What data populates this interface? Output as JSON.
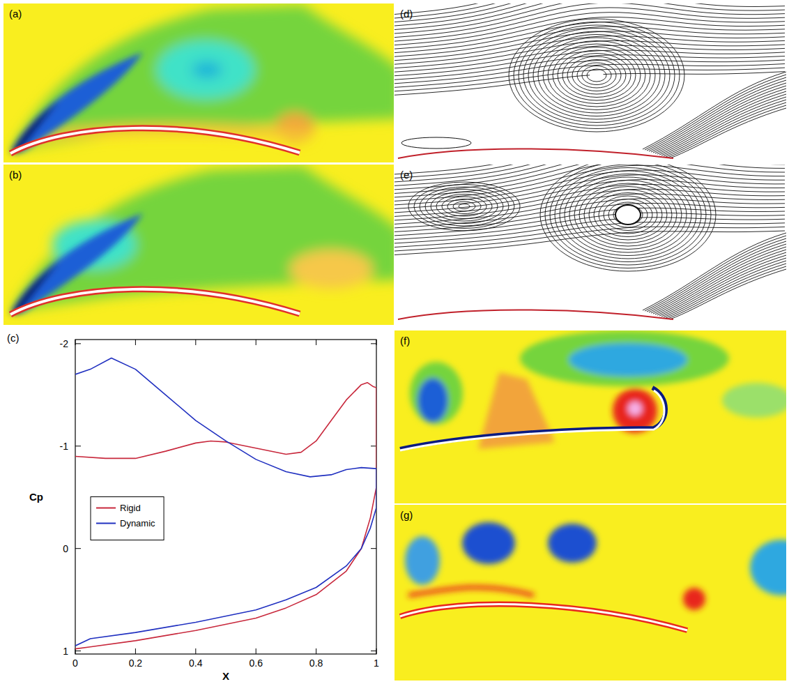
{
  "panels": [
    {
      "label": "(a)"
    },
    {
      "label": "(b)"
    },
    {
      "label": "(d)"
    },
    {
      "label": "(e)"
    },
    {
      "label": "(f)"
    },
    {
      "label": "(g)"
    }
  ],
  "chart_data": {
    "type": "line",
    "panel": "(c)",
    "x_label": "X",
    "y_label": "Cp",
    "xlim": [
      0,
      1
    ],
    "xticks": [
      0,
      0.2,
      0.4,
      0.6,
      0.8,
      1
    ],
    "ylim": [
      1.03,
      -2.04
    ],
    "yticks": [
      -2,
      -1,
      0,
      1
    ],
    "grid": false,
    "legend": "center left",
    "series": [
      {
        "name": "Rigid",
        "color": "#c8283c",
        "x": [
          0,
          0.1,
          0.2,
          0.3,
          0.4,
          0.45,
          0.5,
          0.6,
          0.7,
          0.75,
          0.8,
          0.85,
          0.9,
          0.95,
          0.97,
          0.99,
          1,
          1,
          0.99,
          0.98,
          0.95,
          0.9,
          0.8,
          0.7,
          0.6,
          0.4,
          0.2,
          0.05,
          0
        ],
        "values": [
          -0.9,
          -0.88,
          -0.88,
          -0.95,
          -1.03,
          -1.05,
          -1.04,
          -0.98,
          -0.92,
          -0.94,
          -1.05,
          -1.25,
          -1.45,
          -1.6,
          -1.62,
          -1.58,
          -1.57,
          -0.6,
          -0.45,
          -0.3,
          0,
          0.22,
          0.45,
          0.58,
          0.68,
          0.8,
          0.9,
          0.96,
          0.98
        ]
      },
      {
        "name": "Dynamic",
        "color": "#2030c0",
        "x": [
          0,
          0.05,
          0.12,
          0.2,
          0.3,
          0.4,
          0.5,
          0.6,
          0.7,
          0.78,
          0.85,
          0.9,
          0.95,
          1,
          1,
          0.98,
          0.95,
          0.9,
          0.8,
          0.7,
          0.6,
          0.4,
          0.2,
          0.05,
          0
        ],
        "values": [
          -1.7,
          -1.75,
          -1.86,
          -1.75,
          -1.5,
          -1.25,
          -1.05,
          -0.87,
          -0.75,
          -0.7,
          -0.72,
          -0.77,
          -0.79,
          -0.78,
          -0.4,
          -0.2,
          0,
          0.17,
          0.38,
          0.5,
          0.6,
          0.72,
          0.82,
          0.88,
          0.95
        ]
      }
    ]
  }
}
